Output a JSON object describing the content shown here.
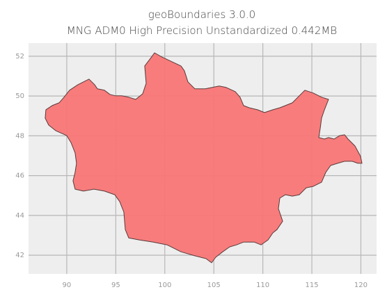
{
  "chart_data": {
    "type": "map",
    "title": "geoBoundaries 3.0.0",
    "subtitle": "MNG ADM0 High Precision Unstandardized 0.442MB",
    "xlim": [
      86.1,
      121.6
    ],
    "ylim": [
      41.06,
      52.66
    ],
    "xticks": [
      90,
      95,
      100,
      105,
      110,
      115,
      120
    ],
    "yticks": [
      42,
      44,
      46,
      48,
      50,
      52
    ],
    "grid": true,
    "color": "#f87575",
    "edge_color": "#5a3a3a",
    "x": [
      87.87,
      88.51,
      89.22,
      89.72,
      90.28,
      91.14,
      91.7,
      92.27,
      92.84,
      93.13,
      93.84,
      94.4,
      94.97,
      95.61,
      96.32,
      97.03,
      97.74,
      98.1,
      97.95,
      98.66,
      98.95,
      99.66,
      100.58,
      101.65,
      102.0,
      102.36,
      103.07,
      104.13,
      104.84,
      105.55,
      106.26,
      107.19,
      107.68,
      108.04,
      108.61,
      109.46,
      110.17,
      111.02,
      111.73,
      112.3,
      113.01,
      113.58,
      114.29,
      115.14,
      115.99,
      116.7,
      116.28,
      115.99,
      115.85,
      115.71,
      116.28,
      116.7,
      117.27,
      117.84,
      118.34,
      118.69,
      119.4,
      119.97,
      120.11,
      119.69,
      119.12,
      118.34,
      117.63,
      116.92,
      116.42,
      115.99,
      115.14,
      114.43,
      113.72,
      113.01,
      112.3,
      111.73,
      111.59,
      112.02,
      111.45,
      111.02,
      110.53,
      109.82,
      109.11,
      108.04,
      107.33,
      106.62,
      105.91,
      105.2,
      104.77,
      104.2,
      103.07,
      101.65,
      100.23,
      98.81,
      97.39,
      96.32,
      95.97,
      95.82,
      95.4,
      94.9,
      93.84,
      92.77,
      91.7,
      90.85,
      90.64,
      90.85,
      90.99,
      90.85,
      90.43,
      90.0,
      88.86,
      88.15,
      87.8
    ],
    "y": [
      49.31,
      49.52,
      49.66,
      49.94,
      50.29,
      50.57,
      50.71,
      50.85,
      50.57,
      50.36,
      50.29,
      50.08,
      50.01,
      50.01,
      49.94,
      49.83,
      50.11,
      50.64,
      51.51,
      51.97,
      52.17,
      51.97,
      51.76,
      51.51,
      51.27,
      50.71,
      50.36,
      50.36,
      50.43,
      50.5,
      50.43,
      50.22,
      49.94,
      49.52,
      49.41,
      49.31,
      49.17,
      49.31,
      49.41,
      49.52,
      49.66,
      49.94,
      50.29,
      50.15,
      49.94,
      49.83,
      49.31,
      48.89,
      48.36,
      47.91,
      47.84,
      47.91,
      47.84,
      48.01,
      48.05,
      47.84,
      47.49,
      46.97,
      46.62,
      46.62,
      46.72,
      46.72,
      46.62,
      46.51,
      46.16,
      45.67,
      45.46,
      45.39,
      45.04,
      44.97,
      45.04,
      44.87,
      44.34,
      43.71,
      43.29,
      43.12,
      42.77,
      42.52,
      42.66,
      42.66,
      42.52,
      42.42,
      42.17,
      41.9,
      41.62,
      41.83,
      41.97,
      42.17,
      42.52,
      42.66,
      42.77,
      42.87,
      43.29,
      44.17,
      44.69,
      45.04,
      45.22,
      45.32,
      45.22,
      45.32,
      45.74,
      46.16,
      46.62,
      47.14,
      47.66,
      48.01,
      48.26,
      48.54,
      48.89
    ]
  }
}
